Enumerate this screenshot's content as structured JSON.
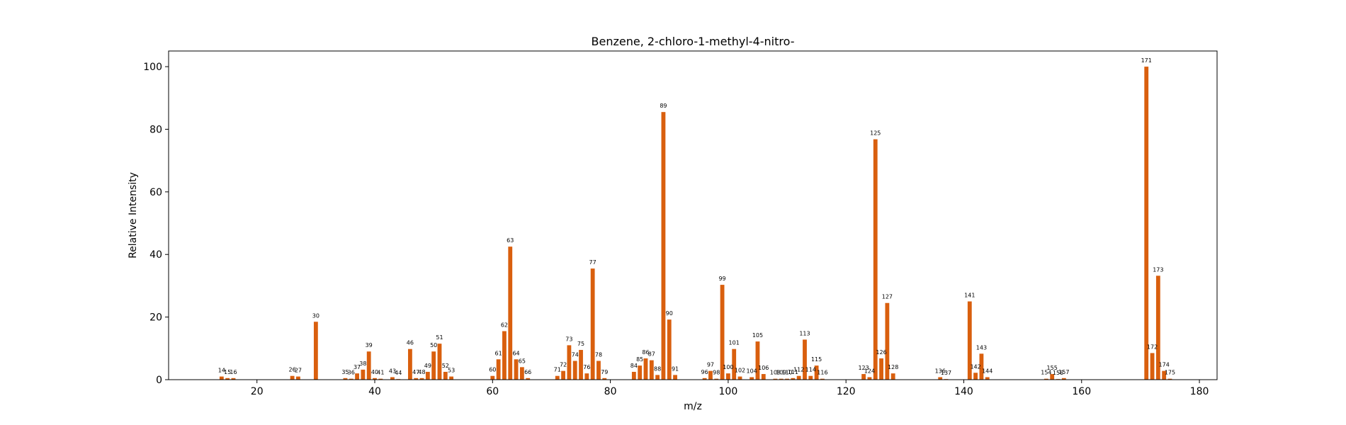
{
  "chart_data": {
    "type": "bar",
    "title": "Benzene, 2-chloro-1-methyl-4-nitro-",
    "xlabel": "m/z",
    "ylabel": "Relative Intensity",
    "xlim": [
      5,
      183
    ],
    "ylim": [
      0,
      105
    ],
    "xticks": [
      20,
      40,
      60,
      80,
      100,
      120,
      140,
      160,
      180
    ],
    "yticks": [
      0,
      20,
      40,
      60,
      80,
      100
    ],
    "grid": false,
    "legend": "none",
    "bar_color": "#d95f0e",
    "series": [
      {
        "x": [
          14,
          15,
          16,
          26,
          27,
          30,
          35,
          36,
          37,
          38,
          39,
          40,
          41,
          43,
          44,
          46,
          47,
          48,
          49,
          50,
          51,
          52,
          53,
          60,
          61,
          62,
          63,
          64,
          65,
          66,
          71,
          72,
          73,
          74,
          75,
          76,
          77,
          78,
          79,
          84,
          85,
          86,
          87,
          88,
          89,
          90,
          91,
          96,
          97,
          98,
          99,
          100,
          101,
          102,
          104,
          105,
          106,
          108,
          109,
          110,
          111,
          112,
          113,
          114,
          115,
          116,
          123,
          124,
          125,
          126,
          127,
          128,
          136,
          137,
          141,
          142,
          143,
          144,
          154,
          155,
          156,
          157,
          171,
          172,
          173,
          174,
          175
        ],
        "y": [
          1.0,
          0.5,
          0.5,
          1.2,
          1.0,
          18.5,
          0.5,
          0.3,
          2.0,
          3.2,
          9.0,
          0.5,
          0.3,
          0.8,
          0.2,
          9.8,
          0.5,
          0.5,
          2.5,
          9.0,
          11.5,
          2.5,
          1.0,
          1.2,
          6.5,
          15.5,
          42.5,
          6.5,
          4.0,
          0.5,
          1.2,
          2.8,
          11.0,
          6.0,
          9.5,
          2.0,
          35.5,
          6.0,
          0.5,
          2.5,
          4.5,
          6.8,
          6.2,
          1.5,
          85.5,
          19.2,
          1.5,
          0.5,
          2.8,
          0.3,
          30.3,
          2.0,
          9.8,
          1.0,
          0.8,
          12.2,
          1.8,
          0.3,
          0.3,
          0.3,
          0.5,
          1.2,
          12.8,
          1.2,
          4.5,
          0.3,
          1.8,
          0.8,
          76.8,
          6.8,
          24.5,
          2.0,
          0.8,
          0.2,
          25.0,
          2.2,
          8.3,
          0.8,
          0.3,
          1.8,
          0.2,
          0.5,
          100.0,
          8.5,
          33.2,
          2.8,
          0.3
        ]
      }
    ]
  }
}
